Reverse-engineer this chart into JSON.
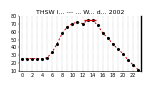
{
  "title": "THSW I... --- ... W... d... 2002",
  "hours": [
    0,
    1,
    2,
    3,
    4,
    5,
    6,
    7,
    8,
    9,
    10,
    11,
    12,
    13,
    14,
    15,
    16,
    17,
    18,
    19,
    20,
    21,
    22,
    23
  ],
  "values": [
    26,
    26,
    26,
    26,
    26,
    27,
    34,
    45,
    58,
    66,
    70,
    72,
    70,
    74,
    74,
    68,
    58,
    52,
    44,
    38,
    32,
    24,
    18,
    12
  ],
  "line_color": "#cc0000",
  "dot_color": "#000000",
  "bg_color": "#ffffff",
  "ylim": [
    10,
    80
  ],
  "yticks": [
    10,
    20,
    30,
    40,
    50,
    60,
    70,
    80
  ],
  "ytick_labels": [
    "10",
    "20",
    "30",
    "40",
    "50",
    "60",
    "70",
    "80"
  ],
  "grid_color": "#888888",
  "title_fontsize": 4.5,
  "tick_fontsize": 3.5,
  "peak_hline_x": [
    12.3,
    14.7
  ],
  "peak_hline_y": 74
}
